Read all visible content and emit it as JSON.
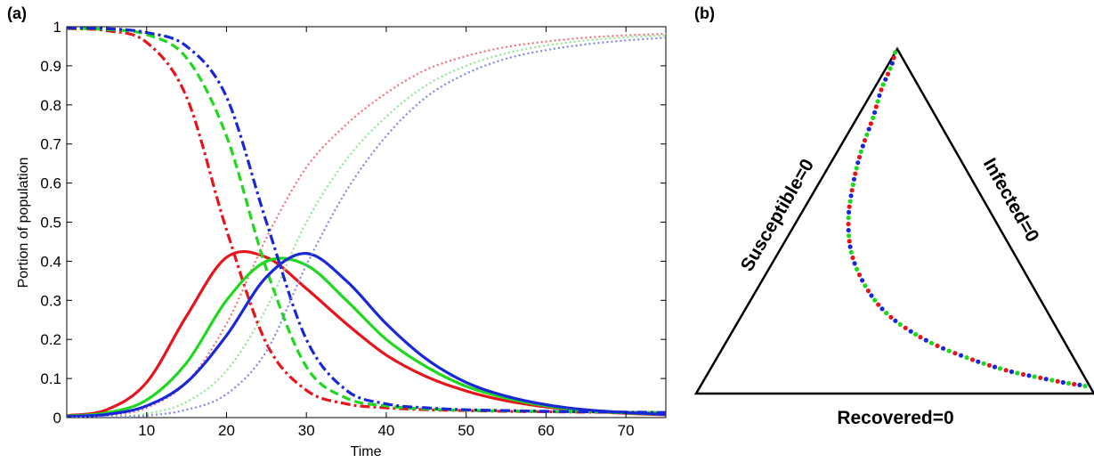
{
  "panels": {
    "a_label": "(a)",
    "b_label": "(b)"
  },
  "chart_data": [
    {
      "type": "line",
      "title": "",
      "xlabel": "Time",
      "ylabel": "Portion of population",
      "xlim": [
        0,
        75
      ],
      "ylim": [
        0,
        1
      ],
      "xticks": [
        10,
        20,
        30,
        40,
        50,
        60,
        70
      ],
      "yticks": [
        0,
        0.1,
        0.2,
        0.3,
        0.4,
        0.5,
        0.6,
        0.7,
        0.8,
        0.9,
        1
      ],
      "ytick_labels": [
        "0",
        "0.1",
        "0.2",
        "0.3",
        "0.4",
        "0.5",
        "0.6",
        "0.7",
        "0.8",
        "0.9",
        "1"
      ],
      "grid": false,
      "legend": "none",
      "x": [
        0,
        5,
        10,
        15,
        20,
        25,
        30,
        35,
        40,
        45,
        50,
        55,
        60,
        65,
        70,
        75
      ],
      "series": [
        {
          "style": "dash-dot",
          "color": "#e8141b",
          "values": [
            0.995,
            0.99,
            0.96,
            0.82,
            0.48,
            0.19,
            0.07,
            0.035,
            0.025,
            0.02,
            0.018,
            0.016,
            0.015,
            0.014,
            0.013,
            0.012
          ]
        },
        {
          "style": "solid",
          "color": "#e8141b",
          "values": [
            0.005,
            0.02,
            0.09,
            0.26,
            0.41,
            0.41,
            0.33,
            0.24,
            0.16,
            0.105,
            0.068,
            0.043,
            0.027,
            0.017,
            0.011,
            0.007
          ]
        },
        {
          "style": "dotted",
          "color": "#f07078",
          "values": [
            0.0,
            0.004,
            0.025,
            0.09,
            0.24,
            0.46,
            0.64,
            0.75,
            0.83,
            0.89,
            0.925,
            0.948,
            0.962,
            0.972,
            0.978,
            0.982
          ]
        },
        {
          "style": "dashed",
          "color": "#1ed81e",
          "values": [
            0.996,
            0.993,
            0.98,
            0.92,
            0.72,
            0.38,
            0.13,
            0.05,
            0.03,
            0.022,
            0.019,
            0.017,
            0.016,
            0.015,
            0.014,
            0.013
          ]
        },
        {
          "style": "solid",
          "color": "#1ed81e",
          "values": [
            0.004,
            0.012,
            0.045,
            0.14,
            0.3,
            0.4,
            0.39,
            0.3,
            0.2,
            0.13,
            0.08,
            0.05,
            0.03,
            0.018,
            0.012,
            0.008
          ]
        },
        {
          "style": "dotted",
          "color": "#8fe88f",
          "values": [
            0.0,
            0.002,
            0.01,
            0.04,
            0.12,
            0.28,
            0.5,
            0.66,
            0.77,
            0.85,
            0.9,
            0.932,
            0.952,
            0.965,
            0.973,
            0.978
          ]
        },
        {
          "style": "dash-dot",
          "color": "#1828d8",
          "values": [
            0.997,
            0.995,
            0.985,
            0.95,
            0.82,
            0.5,
            0.2,
            0.07,
            0.035,
            0.025,
            0.02,
            0.018,
            0.016,
            0.015,
            0.014,
            0.013
          ]
        },
        {
          "style": "solid",
          "color": "#1828d8",
          "values": [
            0.003,
            0.008,
            0.03,
            0.09,
            0.21,
            0.36,
            0.42,
            0.35,
            0.24,
            0.15,
            0.09,
            0.055,
            0.033,
            0.02,
            0.013,
            0.008
          ]
        },
        {
          "style": "dotted",
          "color": "#7f88e6",
          "values": [
            0.0,
            0.001,
            0.005,
            0.02,
            0.06,
            0.17,
            0.39,
            0.58,
            0.72,
            0.82,
            0.88,
            0.918,
            0.94,
            0.955,
            0.965,
            0.972
          ]
        }
      ]
    },
    {
      "type": "scatter",
      "subtype": "ternary",
      "title": "",
      "edge_labels": {
        "left": "Susceptible=0",
        "right": "Infected=0",
        "bottom": "Recovered=0"
      },
      "colors": [
        "#1ed81e",
        "#e8141b",
        "#1828d8"
      ],
      "legend": "none",
      "axes": [
        "Susceptible",
        "Infected",
        "Recovered"
      ],
      "points": [
        {
          "S": 0.99,
          "I": 0.01,
          "R": 0.0
        },
        {
          "S": 0.95,
          "I": 0.04,
          "R": 0.01
        },
        {
          "S": 0.88,
          "I": 0.1,
          "R": 0.02
        },
        {
          "S": 0.8,
          "I": 0.16,
          "R": 0.04
        },
        {
          "S": 0.7,
          "I": 0.24,
          "R": 0.06
        },
        {
          "S": 0.6,
          "I": 0.31,
          "R": 0.09
        },
        {
          "S": 0.5,
          "I": 0.37,
          "R": 0.13
        },
        {
          "S": 0.4,
          "I": 0.41,
          "R": 0.19
        },
        {
          "S": 0.3,
          "I": 0.42,
          "R": 0.28
        },
        {
          "S": 0.22,
          "I": 0.4,
          "R": 0.38
        },
        {
          "S": 0.15,
          "I": 0.34,
          "R": 0.51
        },
        {
          "S": 0.1,
          "I": 0.26,
          "R": 0.64
        },
        {
          "S": 0.065,
          "I": 0.18,
          "R": 0.755
        },
        {
          "S": 0.045,
          "I": 0.11,
          "R": 0.845
        },
        {
          "S": 0.032,
          "I": 0.06,
          "R": 0.908
        },
        {
          "S": 0.026,
          "I": 0.03,
          "R": 0.944
        },
        {
          "S": 0.022,
          "I": 0.012,
          "R": 0.966
        },
        {
          "S": 0.02,
          "I": 0.004,
          "R": 0.976
        }
      ]
    }
  ]
}
